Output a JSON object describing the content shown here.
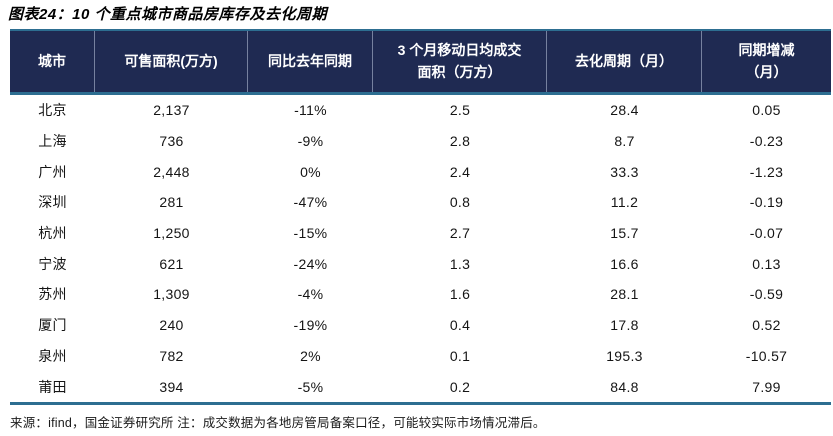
{
  "title": "图表24：10 个重点城市商品房库存及去化周期",
  "footer_note": "来源：ifind，国金证券研究所 注：成交数据为各地房管局备案口径，可能较实际市场情况滞后。",
  "colors": {
    "header_bg": "#1f2a52",
    "accent_line": "#2d6e91",
    "header_text": "#ffffff",
    "body_text": "#151515"
  },
  "table": {
    "columns": {
      "city": "城市",
      "area": "可售面积(万方)",
      "yoy": "同比去年同期",
      "avg_line1": "3 个月移动日均成交",
      "avg_line2": "面积（万方）",
      "cycle": "去化周期（月）",
      "change_line1": "同期增减",
      "change_line2": "（月）"
    },
    "rows": [
      {
        "city": "北京",
        "area": "2,137",
        "yoy": "-11%",
        "avg": "2.5",
        "cycle": "28.4",
        "change": "0.05"
      },
      {
        "city": "上海",
        "area": "736",
        "yoy": "-9%",
        "avg": "2.8",
        "cycle": "8.7",
        "change": "-0.23"
      },
      {
        "city": "广州",
        "area": "2,448",
        "yoy": "0%",
        "avg": "2.4",
        "cycle": "33.3",
        "change": "-1.23"
      },
      {
        "city": "深圳",
        "area": "281",
        "yoy": "-47%",
        "avg": "0.8",
        "cycle": "11.2",
        "change": "-0.19"
      },
      {
        "city": "杭州",
        "area": "1,250",
        "yoy": "-15%",
        "avg": "2.7",
        "cycle": "15.7",
        "change": "-0.07"
      },
      {
        "city": "宁波",
        "area": "621",
        "yoy": "-24%",
        "avg": "1.3",
        "cycle": "16.6",
        "change": "0.13"
      },
      {
        "city": "苏州",
        "area": "1,309",
        "yoy": "-4%",
        "avg": "1.6",
        "cycle": "28.1",
        "change": "-0.59"
      },
      {
        "city": "厦门",
        "area": "240",
        "yoy": "-19%",
        "avg": "0.4",
        "cycle": "17.8",
        "change": "0.52"
      },
      {
        "city": "泉州",
        "area": "782",
        "yoy": "2%",
        "avg": "0.1",
        "cycle": "195.3",
        "change": "-10.57"
      },
      {
        "city": "莆田",
        "area": "394",
        "yoy": "-5%",
        "avg": "0.2",
        "cycle": "84.8",
        "change": "7.99"
      }
    ]
  }
}
